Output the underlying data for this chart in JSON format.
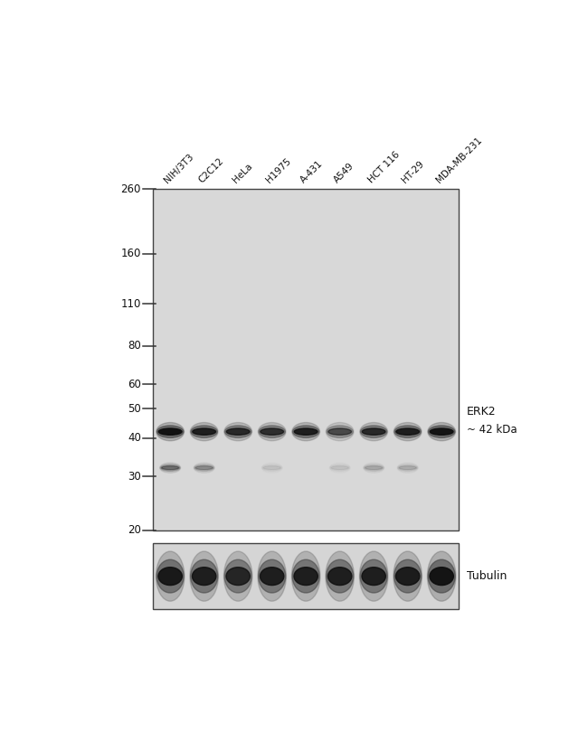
{
  "white_bg": "#ffffff",
  "panel_bg": "#d8d8d8",
  "lane_labels": [
    "NIH/3T3",
    "C2C12",
    "HeLa",
    "H1975",
    "A-431",
    "A549",
    "HCT 116",
    "HT-29",
    "MDA-MB-231"
  ],
  "mw_markers": [
    260,
    160,
    110,
    80,
    60,
    50,
    40,
    30,
    20
  ],
  "erk2_label": "ERK2",
  "erk2_kda": "~ 42 kDa",
  "tubulin_label": "Tubulin",
  "n_lanes": 9,
  "erk2_intensities": [
    1.0,
    0.88,
    0.8,
    0.75,
    0.88,
    0.58,
    0.8,
    0.88,
    0.98
  ],
  "faint_intensities": [
    0.55,
    0.38,
    0.0,
    0.1,
    0.0,
    0.1,
    0.22,
    0.2,
    0.0
  ],
  "tubulin_intensities": [
    0.92,
    0.88,
    0.82,
    0.88,
    0.88,
    0.88,
    0.88,
    0.9,
    0.98
  ]
}
